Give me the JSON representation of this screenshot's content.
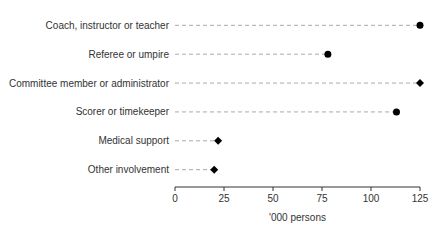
{
  "chart_data": {
    "type": "dot",
    "categories": [
      "Other involvement",
      "Medical support",
      "Scorer or timekeeper",
      "Committee member or administrator",
      "Referee or umpire",
      "Coach, instructor or teacher"
    ],
    "series": [
      {
        "marker": "diamond",
        "color": "#000000",
        "values": [
          20,
          22,
          null,
          125,
          null,
          null
        ]
      },
      {
        "marker": "circle",
        "color": "#000000",
        "values": [
          null,
          null,
          113,
          null,
          78,
          125
        ]
      }
    ],
    "color": "#aaaaaa",
    "line_style": "dashed",
    "xlim": [
      0,
      125
    ],
    "xticks": [
      0,
      25,
      50,
      75,
      100,
      125
    ],
    "xlabel": "'000 persons",
    "grid": false
  }
}
